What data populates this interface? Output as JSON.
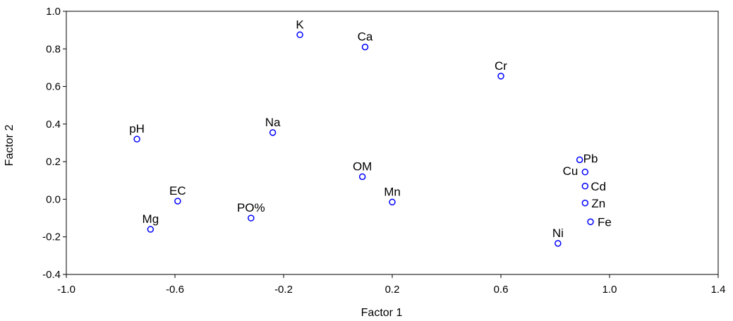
{
  "chart_data": {
    "type": "scatter",
    "xlabel": "Factor 1",
    "ylabel": "Factor 2",
    "xlim": [
      -1.0,
      1.4
    ],
    "ylim": [
      -0.4,
      1.0
    ],
    "xticks": [
      "-1.0",
      "-0.6",
      "-0.2",
      "0.2",
      "0.6",
      "1.0",
      "1.4"
    ],
    "yticks": [
      "1.0",
      "0.8",
      "0.6",
      "0.4",
      "0.2",
      "0.0",
      "-0.2",
      "-0.4"
    ],
    "grid": false,
    "marker_color": "#0000ff",
    "points": [
      {
        "label": "K",
        "x": -0.14,
        "y": 0.875
      },
      {
        "label": "Ca",
        "x": 0.1,
        "y": 0.81
      },
      {
        "label": "Cr",
        "x": 0.6,
        "y": 0.655
      },
      {
        "label": "pH",
        "x": -0.74,
        "y": 0.32
      },
      {
        "label": "Na",
        "x": -0.24,
        "y": 0.355
      },
      {
        "label": "OM",
        "x": 0.09,
        "y": 0.12
      },
      {
        "label": "Mn",
        "x": 0.2,
        "y": -0.015
      },
      {
        "label": "EC",
        "x": -0.59,
        "y": -0.01
      },
      {
        "label": "PO%",
        "x": -0.32,
        "y": -0.1
      },
      {
        "label": "Mg",
        "x": -0.69,
        "y": -0.16
      },
      {
        "label": "Pb",
        "x": 0.89,
        "y": 0.21
      },
      {
        "label": "Cu",
        "x": 0.91,
        "y": 0.145
      },
      {
        "label": "Cd",
        "x": 0.91,
        "y": 0.07
      },
      {
        "label": "Zn",
        "x": 0.91,
        "y": -0.02
      },
      {
        "label": "Fe",
        "x": 0.93,
        "y": -0.12
      },
      {
        "label": "Ni",
        "x": 0.81,
        "y": -0.235
      }
    ]
  }
}
